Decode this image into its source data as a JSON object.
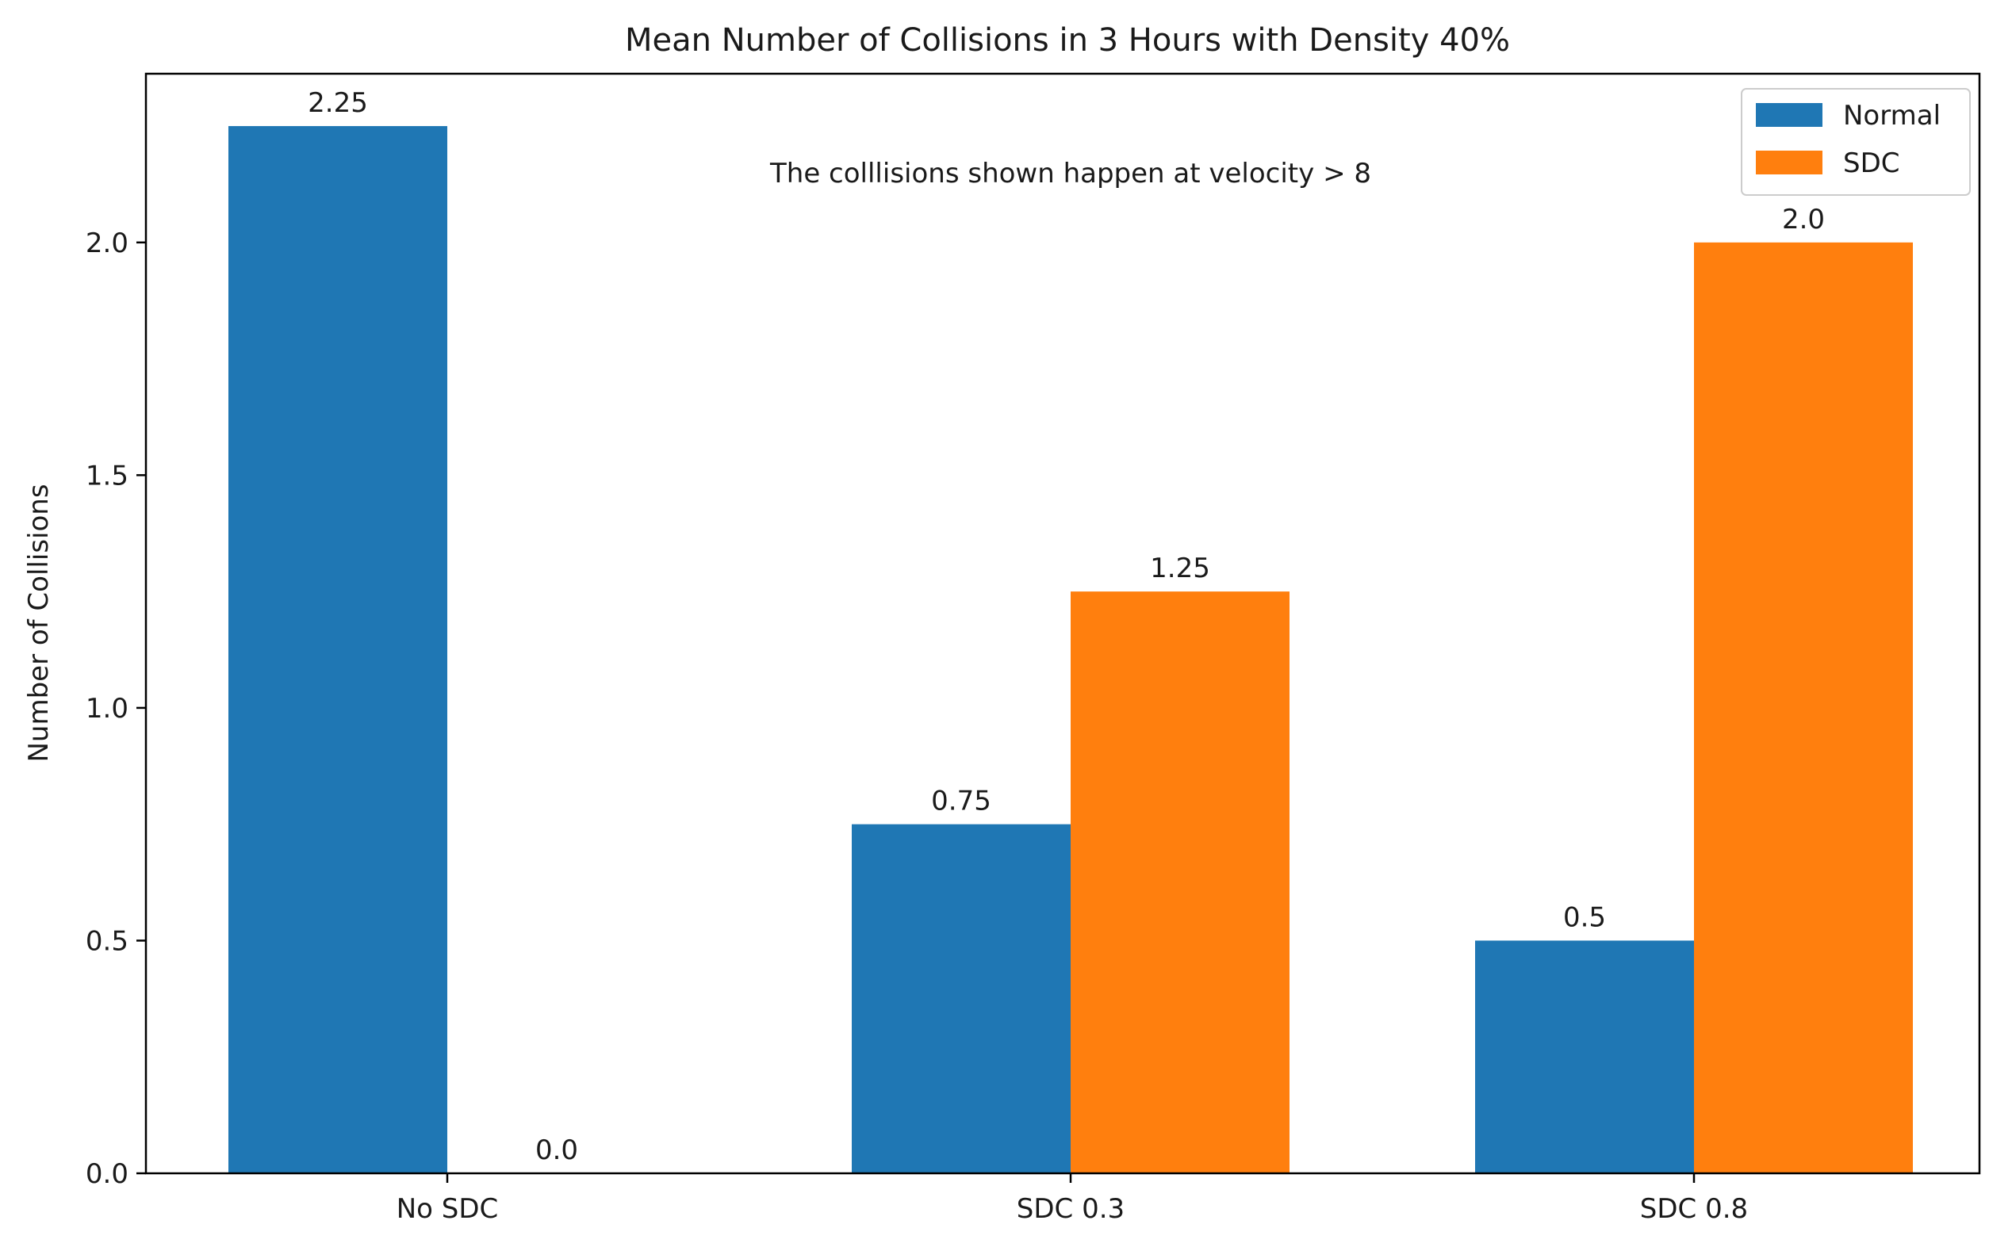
{
  "chart_data": {
    "type": "bar",
    "title": "Mean Number of Collisions in 3 Hours with Density 40%",
    "xlabel": "",
    "ylabel": "Number of Collisions",
    "annotation": "The colllisions shown happen at velocity > 8",
    "categories": [
      "No SDC",
      "SDC 0.3",
      "SDC 0.8"
    ],
    "series": [
      {
        "name": "Normal",
        "color": "#1f77b4",
        "values": [
          2.25,
          0.75,
          0.5
        ],
        "labels": [
          "2.25",
          "0.75",
          "0.5"
        ]
      },
      {
        "name": "SDC",
        "color": "#ff7f0e",
        "values": [
          0.0,
          1.25,
          2.0
        ],
        "labels": [
          "0.0",
          "1.25",
          "2.0"
        ]
      }
    ],
    "ylim": [
      0,
      2.3625
    ],
    "yticks": [
      0.0,
      0.5,
      1.0,
      1.5,
      2.0
    ],
    "ytick_labels": [
      "0.0",
      "0.5",
      "1.0",
      "1.5",
      "2.0"
    ],
    "grid": false,
    "legend_position": "top-right"
  }
}
